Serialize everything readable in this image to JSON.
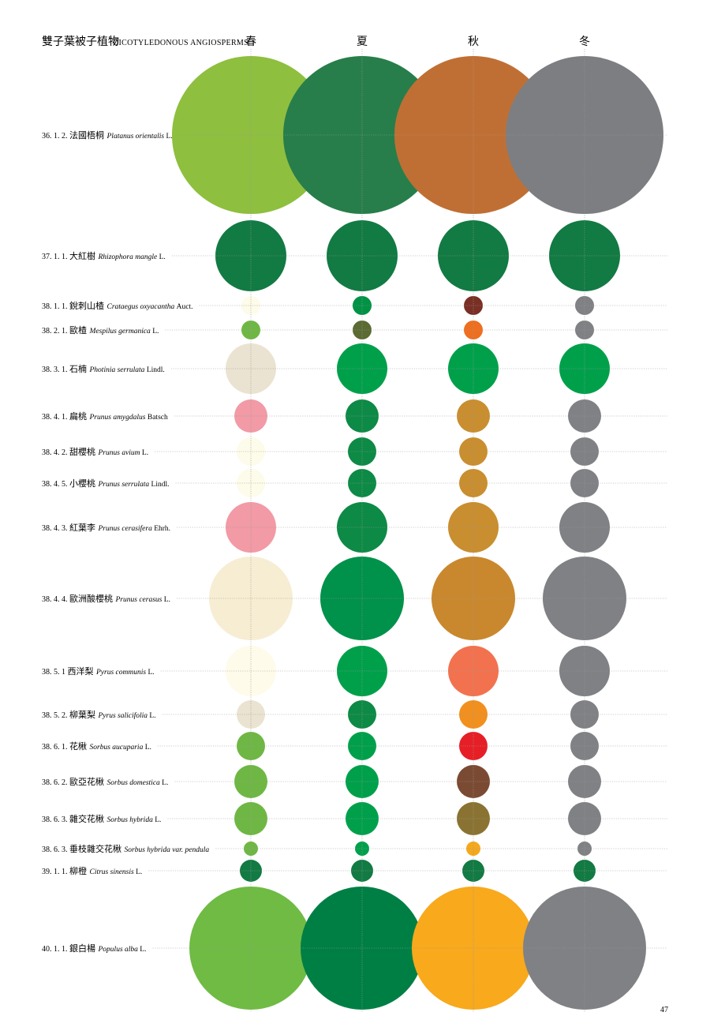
{
  "header": {
    "title_zh": "雙子葉被子植物",
    "title_en": "DICOTYLEDONOUS ANGIOSPERMS"
  },
  "seasons": [
    "春",
    "夏",
    "秋",
    "冬"
  ],
  "page_number": "47",
  "rows": [
    {
      "code": "36. 1. 2.",
      "name_zh": "法國梧桐",
      "sci": "Platanus orientalis",
      "author": "L.",
      "size": 100,
      "colors": [
        "#8ebf3f",
        "#277e4a",
        "#c06f34",
        "#7d7e81"
      ]
    },
    {
      "code": "37. 1. 1.",
      "name_zh": "大紅樹",
      "sci": "Rhizophora mangle",
      "author": "L.",
      "size": 45,
      "colors": [
        "#127a43",
        "#127a43",
        "#127a43",
        "#127a43"
      ]
    },
    {
      "code": "38. 1. 1.",
      "name_zh": "銳刺山楂",
      "sci": "Crataegus oxyacantha",
      "author": "Auct.",
      "size": 12,
      "colors": [
        "#fdfbe9",
        "#009245",
        "#7a2f25",
        "#808184"
      ]
    },
    {
      "code": "38. 2. 1.",
      "name_zh": "歐楂",
      "sci": "Mespilus germanica",
      "author": "L.",
      "size": 12,
      "colors": [
        "#6fb744",
        "#5b6b32",
        "#ee6f1f",
        "#808184"
      ]
    },
    {
      "code": "38. 3. 1.",
      "name_zh": "石楠",
      "sci": "Photinia serrulata",
      "author": "Lindl.",
      "size": 32,
      "colors": [
        "#eae3d1",
        "#00a04b",
        "#00a04b",
        "#00a04b"
      ]
    },
    {
      "code": "38. 4. 1.",
      "name_zh": "扁桃",
      "sci": "Prunus amygdalus",
      "author": "Batsch",
      "size": 21,
      "colors": [
        "#f29aa5",
        "#0d8a45",
        "#c98e2f",
        "#808184"
      ]
    },
    {
      "code": "38. 4. 2.",
      "name_zh": "甜櫻桃",
      "sci": "Prunus avium",
      "author": "L.",
      "size": 18,
      "colors": [
        "#fdfbe9",
        "#0d8a45",
        "#c98e2f",
        "#808184"
      ]
    },
    {
      "code": "38. 4. 5.",
      "name_zh": "小櫻桃",
      "sci": "Prunus serrulata",
      "author": "Lindl.",
      "size": 18,
      "colors": [
        "#fdfbe9",
        "#0d8a45",
        "#c98e2f",
        "#808184"
      ]
    },
    {
      "code": "38. 4. 3.",
      "name_zh": "紅葉李",
      "sci": "Prunus cerasifera",
      "author": "Ehrh.",
      "size": 32,
      "colors": [
        "#f29aa5",
        "#0d8a45",
        "#c98e2f",
        "#808184"
      ]
    },
    {
      "code": "38. 4. 4.",
      "name_zh": "歐洲酸櫻桃",
      "sci": "Prunus cerasus",
      "author": "L.",
      "size": 53,
      "colors": [
        "#f6edd3",
        "#00914a",
        "#c9882e",
        "#808184"
      ]
    },
    {
      "code": "38. 5. 1",
      "name_zh": "西洋梨",
      "sci": "Pyrus communis",
      "author": "L.",
      "size": 32,
      "colors": [
        "#fefbea",
        "#00a04b",
        "#f2724f",
        "#808184"
      ]
    },
    {
      "code": "38. 5. 2.",
      "name_zh": "柳葉梨",
      "sci": "Pyrus salicifolia",
      "author": "L.",
      "size": 18,
      "colors": [
        "#eae3d1",
        "#0d8a45",
        "#f1901e",
        "#808184"
      ]
    },
    {
      "code": "38. 6. 1.",
      "name_zh": "花楸",
      "sci": "Sorbus aucuparia",
      "author": "L.",
      "size": 18,
      "colors": [
        "#6fb744",
        "#00a04b",
        "#e61f26",
        "#808184"
      ]
    },
    {
      "code": "38. 6. 2.",
      "name_zh": "歐亞花楸",
      "sci": "Sorbus domestica",
      "author": "L.",
      "size": 21,
      "colors": [
        "#6fb744",
        "#00a04b",
        "#7b4a32",
        "#808184"
      ]
    },
    {
      "code": "38. 6. 3.",
      "name_zh": "雜交花楸",
      "sci": "Sorbus hybrida",
      "author": "L.",
      "size": 21,
      "colors": [
        "#6fb744",
        "#00a04b",
        "#8a7332",
        "#808184"
      ]
    },
    {
      "code": "38. 6. 3.",
      "name_zh": "垂枝雜交花楸",
      "sci": "Sorbus hybrida var. pendula",
      "author": "",
      "size": 9,
      "colors": [
        "#6fb744",
        "#00a04b",
        "#f5a81c",
        "#808184"
      ]
    },
    {
      "code": "39. 1. 1.",
      "name_zh": "柳橙",
      "sci": "Citrus sinensis",
      "author": "L.",
      "size": 14,
      "colors": [
        "#127a43",
        "#127a43",
        "#127a43",
        "#127a43"
      ]
    },
    {
      "code": "40. 1. 1.",
      "name_zh": "銀白楊",
      "sci": "Populus alba",
      "author": "L.",
      "size": 78,
      "colors": [
        "#6fbb44",
        "#007f44",
        "#f8a91c",
        "#808184"
      ]
    }
  ]
}
